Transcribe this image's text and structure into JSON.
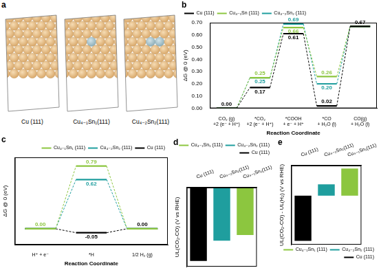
{
  "panel_a": {
    "panel": "a",
    "slabs": [
      {
        "label": "Cu (111)",
        "sn_atoms": 0
      },
      {
        "label": "Cu₄₋₁Sn₁(111)",
        "sn_atoms": 1
      },
      {
        "label": "Cu₄₋₂Sn₂(111)",
        "sn_atoms": 2
      }
    ]
  },
  "chart_data": [
    {
      "panel": "b",
      "type": "step",
      "categories": [
        "CO₂ (g)\n+2 (e⁻ + H⁺)",
        "*CO₂\n+2 (e⁻ + H⁺)",
        "*COOH\n+ e⁻ + H⁺",
        "*CO\n+ H₂O (l)",
        "CO(g)\n+ H₂O (l)"
      ],
      "x_label": "Reaction Coordinate",
      "y_label": "ΔG @ 0 (eV)",
      "ylim": [
        0,
        0.7
      ],
      "yticks": [
        {
          "value": 0,
          "label": "0.00"
        },
        {
          "value": 0.1,
          "label": "0.10"
        },
        {
          "value": 0.2,
          "label": "0.20"
        },
        {
          "value": 0.3,
          "label": "0.30"
        },
        {
          "value": 0.4,
          "label": "0.40"
        },
        {
          "value": 0.5,
          "label": "0.50"
        },
        {
          "value": 0.6,
          "label": "0.60"
        },
        {
          "value": 0.7,
          "label": "0.70"
        }
      ],
      "grid": false,
      "legend": "upper left",
      "data_labels": true,
      "series": [
        {
          "name": "Cu (111)",
          "color": "#000000",
          "values": [
            0,
            0.17,
            0.61,
            0.02,
            0.67
          ],
          "value_labels": [
            "0.00",
            "0.17",
            "0.61",
            "0.02",
            "0.67"
          ]
        },
        {
          "name": "Cu₄₋₁Sn (111)",
          "color": "#8cc63f",
          "values": [
            0,
            0.25,
            0.66,
            0.26,
            0.67
          ],
          "value_labels": [
            null,
            "0.25",
            "0.66",
            "0.26",
            null
          ]
        },
        {
          "name": "Cu₄₋₂Sn₂ (111)",
          "color": "#1f9e9e",
          "values": [
            0,
            0.25,
            0.69,
            0.2,
            0.67
          ],
          "value_labels": [
            null,
            "0.25",
            "0.69",
            "0.20",
            null
          ]
        }
      ]
    },
    {
      "panel": "c",
      "type": "step",
      "categories": [
        "H⁺ + e⁻",
        "*H",
        "1/2 H₂ (g)"
      ],
      "x_label": "Reaction Coordinate",
      "y_label": "ΔG @ 0 (eV)",
      "ylim": [
        -0.2,
        0.9
      ],
      "tick_labels": "x",
      "grid": false,
      "legend": "upper right",
      "data_labels": true,
      "series": [
        {
          "name": "Cu₄₋₁Sn₁ (111)",
          "color": "#8cc63f",
          "values": [
            0,
            0.79,
            0
          ],
          "value_labels": [
            "0.00",
            "0.79",
            null
          ]
        },
        {
          "name": "Cu₄₋₂Sn₂ (111)",
          "color": "#1f9e9e",
          "values": [
            0,
            0.62,
            0
          ],
          "value_labels": [
            null,
            "0.62",
            null
          ]
        },
        {
          "name": "Cu (111)",
          "color": "#000000",
          "values": [
            0,
            -0.05,
            0
          ],
          "value_labels": [
            null,
            "-0.05",
            "0.00"
          ]
        }
      ]
    },
    {
      "panel": "d",
      "type": "bar",
      "categories": [
        "Cu (111)",
        "Cu₄₋₂Sn₂(111)",
        "Cu₄₋₁Sn₁(111)"
      ],
      "y_label": "UL(CO₂-CO) (V vs RHE)",
      "ylim": [
        -0.7,
        0
      ],
      "tick_labels": "x",
      "grid": false,
      "legend": "upper right",
      "series": [
        {
          "name": "Cu₄₋₁Sn₁ (111)",
          "color": "#8cc63f",
          "values": [
            null,
            null,
            -0.42
          ]
        },
        {
          "name": "Cu₄₋₂Sn₂ (111)",
          "color": "#1f9e9e",
          "values": [
            null,
            -0.47,
            null
          ]
        },
        {
          "name": "Cu (111)",
          "color": "#000000",
          "values": [
            -0.65,
            null,
            null
          ]
        }
      ]
    },
    {
      "panel": "e",
      "type": "bar",
      "categories": [
        "Cu (111)",
        "Cu₄₋₂Sn₂(111)",
        "Cu₄₋₁Sn₁(111)"
      ],
      "y_label": "UL(CO₂-CO) - UL(H₂) (V vs RHE)",
      "ylim": [
        -0.65,
        0.4
      ],
      "tick_labels": "x",
      "grid": false,
      "legend": "lower right",
      "series": [
        {
          "name": "Cu₄₋₁Sn₁ (111)",
          "color": "#8cc63f",
          "values": [
            null,
            null,
            0.36
          ]
        },
        {
          "name": "Cu₄₋₂Sn₂ (111)",
          "color": "#1f9e9e",
          "values": [
            null,
            0.15,
            null
          ]
        },
        {
          "name": "Cu (111)",
          "color": "#000000",
          "values": [
            -0.6,
            null,
            null
          ]
        }
      ]
    }
  ]
}
